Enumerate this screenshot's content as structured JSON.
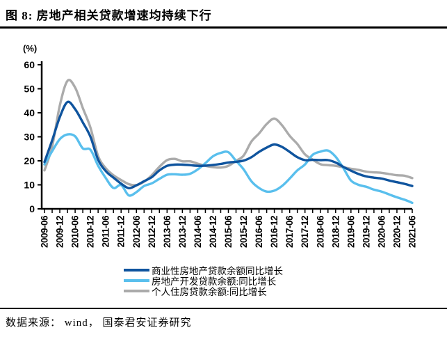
{
  "figure": {
    "title": "图 8:  房地产相关贷款增速均持续下行",
    "source_note": "数据来源： wind， 国泰君安证券研究"
  },
  "chart_data": {
    "type": "line",
    "title": "房地产相关贷款增速均持续下行",
    "unit_label": "(%)",
    "xlabel": "",
    "ylabel": "(%)",
    "ylim": [
      0,
      60
    ],
    "yticks": [
      0,
      10,
      20,
      30,
      40,
      50,
      60
    ],
    "grid": false,
    "legend_position": "bottom-center",
    "x_start": "2009-06",
    "x_step_months": 3,
    "x_label_every_n_points": 2,
    "x_tick_labels": [
      "2009-06",
      "2009-12",
      "2010-06",
      "2010-12",
      "2011-06",
      "2011-12",
      "2012-06",
      "2012-12",
      "2013-06",
      "2013-12",
      "2014-06",
      "2014-12",
      "2015-06",
      "2015-12",
      "2016-06",
      "2016-12",
      "2017-06",
      "2017-12",
      "2018-06",
      "2018-12",
      "2019-06",
      "2019-12",
      "2020-06",
      "2020-12",
      "2021-06"
    ],
    "draw_order": [
      2,
      1,
      0
    ],
    "series": [
      {
        "name": "商业性房地产贷款余额同比增长",
        "color": "#0F549E",
        "values": [
          19.5,
          28.5,
          38.2,
          44.5,
          41.5,
          36,
          30,
          20.5,
          15.7,
          13,
          10.5,
          8.6,
          9.8,
          11.5,
          13.2,
          16,
          17.9,
          18.4,
          18.4,
          18.2,
          17.9,
          18,
          18.3,
          18.7,
          19.3,
          19.6,
          20.1,
          21.5,
          23.7,
          25.5,
          26.8,
          25.8,
          23.7,
          21.5,
          20.3,
          20.4,
          20.3,
          20.3,
          19.3,
          17.5,
          15.9,
          14.5,
          13.5,
          13,
          12.6,
          11.8,
          11.1,
          10.4,
          9.5
        ]
      },
      {
        "name": "房地产开发贷款余额:同比增长",
        "color": "#59BFED",
        "values": [
          18.5,
          24,
          29,
          31,
          30.2,
          25.2,
          24.6,
          18,
          12.8,
          8.7,
          9.9,
          5.6,
          7,
          9.5,
          10.6,
          12.5,
          14.2,
          14.4,
          14.2,
          14.6,
          16.4,
          19,
          21.9,
          23.3,
          23.6,
          20,
          16.4,
          11.5,
          8.7,
          7.2,
          7.6,
          9.5,
          12.6,
          16,
          18.5,
          22.5,
          23.8,
          24.3,
          21.7,
          17,
          11.8,
          10,
          9.2,
          8,
          7.2,
          6,
          4.8,
          3.8,
          2.5
        ]
      },
      {
        "name": "个人住房贷款余额:同比增长",
        "color": "#ABABAB",
        "values": [
          16,
          26,
          43,
          53.3,
          50.5,
          42,
          33.8,
          22,
          16.9,
          14,
          12,
          10.3,
          9.9,
          11.3,
          14,
          17.5,
          20.3,
          20.8,
          19.8,
          19.8,
          18.8,
          17.9,
          17.4,
          17.2,
          17.9,
          20,
          22.2,
          28,
          31.4,
          35.3,
          37.6,
          34.8,
          30.4,
          27,
          22.7,
          20.5,
          18.6,
          18.2,
          17.9,
          17.3,
          16.7,
          16.2,
          15.5,
          15.2,
          15,
          14.5,
          14,
          13.8,
          12.8
        ]
      }
    ]
  }
}
